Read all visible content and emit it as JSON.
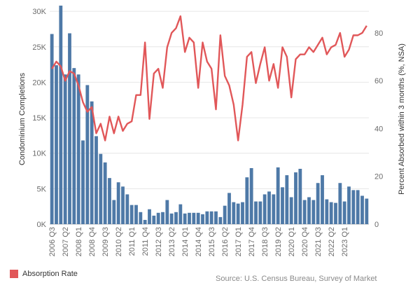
{
  "chart_data": {
    "type": "bar",
    "x_tick_labels": [
      "2006 Q3",
      "2007 Q2",
      "2008 Q1",
      "2008 Q4",
      "2009 Q3",
      "2010 Q2",
      "2011 Q1",
      "2011 Q4",
      "2012 Q3",
      "2013 Q2",
      "2014 Q1",
      "2014 Q4",
      "2015 Q3",
      "2016 Q2",
      "2017 Q1",
      "2017 Q4",
      "2018 Q3",
      "2019 Q2",
      "2020 Q1",
      "2020 Q4",
      "2021 Q3",
      "2022 Q2",
      "2023 Q1"
    ],
    "y_left": {
      "label": "Condominium Completions",
      "ticks": [
        "0K",
        "5K",
        "10K",
        "15K",
        "20K",
        "25K",
        "30K"
      ],
      "range": [
        0,
        31000
      ]
    },
    "y_right": {
      "label": "Percent Absorbed within 3 months (%, NSA)",
      "ticks": [
        "0",
        "20",
        "40",
        "60",
        "80"
      ],
      "range": [
        0,
        92
      ]
    },
    "series": [
      {
        "name": "",
        "kind": "bar",
        "color": "#4e79a7",
        "values": [
          26800,
          22400,
          30800,
          21100,
          26900,
          22000,
          21100,
          11800,
          19600,
          17300,
          12400,
          9900,
          8700,
          6500,
          3400,
          5900,
          5300,
          4200,
          2700,
          2700,
          1700,
          600,
          2100,
          1200,
          1600,
          1700,
          3400,
          1500,
          1700,
          2800,
          1500,
          1600,
          1600,
          1600,
          1400,
          1800,
          1800,
          1800,
          1000,
          2600,
          4400,
          3100,
          2900,
          3100,
          6600,
          7900,
          3200,
          3200,
          4200,
          4600,
          4200,
          8000,
          5200,
          6900,
          3800,
          7300,
          7800,
          3400,
          3800,
          3400,
          5800,
          6900,
          3500,
          3100,
          3000,
          5800,
          3200,
          5300,
          4800,
          4800,
          4000,
          3600
        ]
      },
      {
        "name": "Absorption Rate",
        "kind": "line",
        "color": "#e15759",
        "values": [
          65,
          68,
          66,
          60,
          64,
          63,
          58,
          51,
          47,
          49,
          38,
          42,
          35,
          45,
          38,
          45,
          39,
          42,
          43,
          54,
          54,
          76,
          44,
          63,
          65,
          57,
          74,
          80,
          82,
          87,
          72,
          78,
          76,
          57,
          76,
          68,
          65,
          48,
          79,
          62,
          58,
          50,
          35,
          50,
          70,
          72,
          59,
          67,
          74,
          60,
          67,
          57,
          74,
          70,
          53,
          69,
          71,
          71,
          74,
          72,
          75,
          78,
          71,
          74,
          75,
          80,
          70,
          73,
          79,
          79,
          80,
          83
        ]
      }
    ]
  },
  "legend": {
    "label": "Absorption Rate",
    "color": "#e15759"
  },
  "source_text": "Source: U.S. Census Bureau, Survey of Market"
}
